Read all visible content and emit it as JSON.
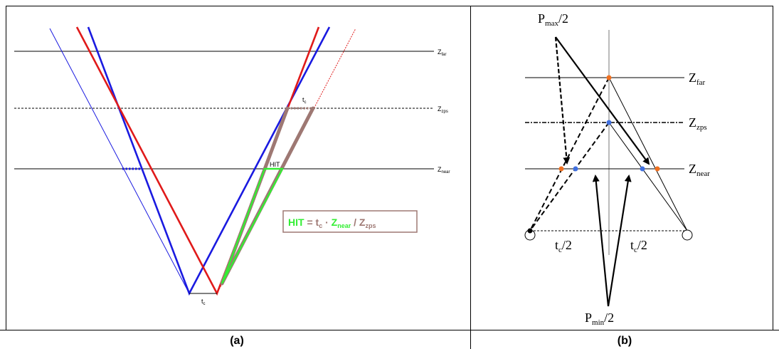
{
  "panel_a": {
    "caption": "(a)",
    "labels": {
      "zfar": {
        "main": "Z",
        "sub": "far"
      },
      "zzps": {
        "main": "Z",
        "sub": "zps"
      },
      "znear": {
        "main": "Z",
        "sub": "near"
      },
      "tc_bottom": {
        "main": "t",
        "sub": "c"
      },
      "tc_top": {
        "main": "t",
        "sub": "c"
      },
      "hit": "HIT"
    },
    "formula": {
      "hit": "HIT",
      "eq": " = ",
      "t": "t",
      "t_sub": "c",
      "dot": " · ",
      "znear": "Z",
      "znear_sub": "near",
      "slash": " / ",
      "zzps": "Z",
      "zzps_sub": "zps"
    },
    "colors": {
      "blue": "#1a1ae0",
      "red": "#e01a1a",
      "brown": "#9e7873",
      "green": "#33ee33",
      "black": "#000000"
    }
  },
  "panel_b": {
    "caption": "(b)",
    "labels": {
      "pmax": {
        "main": "P",
        "sub": "max",
        "tail": "/2"
      },
      "pmin": {
        "main": "P",
        "sub": "min",
        "tail": "/2"
      },
      "zfar": {
        "main": "Z",
        "sub": "far"
      },
      "zzps": {
        "main": "Z",
        "sub": "zps"
      },
      "znear": {
        "main": "Z",
        "sub": "near"
      },
      "tc_left": {
        "main": "t",
        "sub": "c",
        "tail": "/2"
      },
      "tc_right": {
        "main": "t",
        "sub": "c",
        "tail": "/2"
      }
    },
    "colors": {
      "orange": "#f07020",
      "blue": "#4070e0",
      "black": "#000000"
    }
  }
}
